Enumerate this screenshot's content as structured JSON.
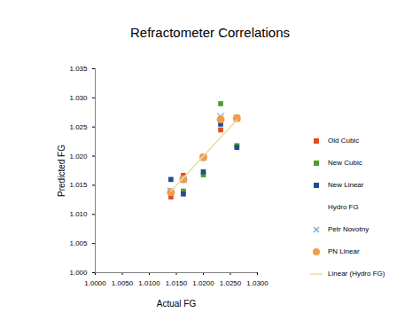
{
  "chart_data": {
    "type": "scatter",
    "title": "Refractometer Correlations",
    "x_label": "Actual FG",
    "y_label": "Predicted FG",
    "x": [
      1.014,
      1.0163,
      1.02,
      1.0232,
      1.0262
    ],
    "series": [
      {
        "name": "Old Cubic",
        "color": "#e8491d",
        "marker": "square",
        "values": [
          1.013,
          1.0167,
          1.0198,
          1.0245,
          1.0265
        ]
      },
      {
        "name": "New Cubic",
        "color": "#4f9d2d",
        "marker": "square",
        "values": [
          1.014,
          1.014,
          1.0168,
          1.029,
          1.0218
        ]
      },
      {
        "name": "New Linear",
        "color": "#1f4e8c",
        "marker": "square",
        "values": [
          1.016,
          1.0135,
          1.0173,
          1.0255,
          1.0215
        ]
      },
      {
        "name": "Hydro FG",
        "color": "#f0d9a0",
        "marker": "none",
        "values": [
          1.014,
          1.0163,
          1.02,
          1.0232,
          1.0262
        ]
      },
      {
        "name": "Petr Novotny",
        "color": "#6fa8dc",
        "marker": "x",
        "values": [
          1.014,
          1.016,
          1.0198,
          1.0268,
          1.0265
        ]
      },
      {
        "name": "PN Linear",
        "color": "#f29b4c",
        "marker": "circle",
        "values": [
          1.0138,
          1.016,
          1.0198,
          1.0263,
          1.0265
        ]
      },
      {
        "name": "Linear (Hydro FG)",
        "color": "#f0d9a0",
        "type": "line",
        "line_style": "solid",
        "marker": "none",
        "values": [
          1.014,
          1.0163,
          1.02,
          1.0232,
          1.0262
        ]
      }
    ],
    "xlim": [
      1.0,
      1.03
    ],
    "xticks": [
      {
        "value": 1.0,
        "label": "1.0000"
      },
      {
        "value": 1.005,
        "label": "1.0050"
      },
      {
        "value": 1.01,
        "label": "1.0100"
      },
      {
        "value": 1.015,
        "label": "1.0150"
      },
      {
        "value": 1.02,
        "label": "1.0200"
      },
      {
        "value": 1.025,
        "label": "1.0250"
      },
      {
        "value": 1.03,
        "label": "1.0300"
      }
    ],
    "ylim": [
      1.0,
      1.035
    ],
    "yticks": [
      {
        "value": 1.0,
        "label": "1.000"
      },
      {
        "value": 1.005,
        "label": "1.005"
      },
      {
        "value": 1.01,
        "label": "1.010"
      },
      {
        "value": 1.015,
        "label": "1.015"
      },
      {
        "value": 1.02,
        "label": "1.020"
      },
      {
        "value": 1.025,
        "label": "1.025"
      },
      {
        "value": 1.03,
        "label": "1.030"
      },
      {
        "value": 1.035,
        "label": "1.035"
      }
    ],
    "grid": false,
    "legend": "right"
  }
}
